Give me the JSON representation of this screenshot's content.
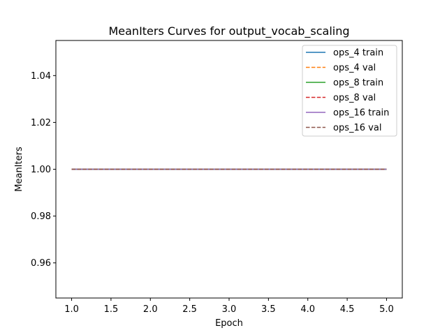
{
  "chart_data": {
    "type": "line",
    "title": "MeanIters Curves for output_vocab_scaling",
    "xlabel": "Epoch",
    "ylabel": "MeanIters",
    "xlim": [
      0.8,
      5.2
    ],
    "ylim": [
      0.945,
      1.055
    ],
    "x_ticks": [
      1.0,
      1.5,
      2.0,
      2.5,
      3.0,
      3.5,
      4.0,
      4.5,
      5.0
    ],
    "x_tick_labels": [
      "1.0",
      "1.5",
      "2.0",
      "2.5",
      "3.0",
      "3.5",
      "4.0",
      "4.5",
      "5.0"
    ],
    "y_ticks": [
      0.96,
      0.98,
      1.0,
      1.02,
      1.04
    ],
    "y_tick_labels": [
      "0.96",
      "0.98",
      "1.00",
      "1.02",
      "1.04"
    ],
    "grid": false,
    "legend_position": "top-right",
    "x": [
      1,
      2,
      3,
      4,
      5
    ],
    "series": [
      {
        "name": "ops_4 train",
        "values": [
          1,
          1,
          1,
          1,
          1
        ],
        "color": "#1f77b4",
        "dash": "solid"
      },
      {
        "name": "ops_4 val",
        "values": [
          1,
          1,
          1,
          1,
          1
        ],
        "color": "#ff7f0e",
        "dash": "dashed"
      },
      {
        "name": "ops_8 train",
        "values": [
          1,
          1,
          1,
          1,
          1
        ],
        "color": "#2ca02c",
        "dash": "solid"
      },
      {
        "name": "ops_8 val",
        "values": [
          1,
          1,
          1,
          1,
          1
        ],
        "color": "#d62728",
        "dash": "dashed"
      },
      {
        "name": "ops_16 train",
        "values": [
          1,
          1,
          1,
          1,
          1
        ],
        "color": "#9467bd",
        "dash": "solid"
      },
      {
        "name": "ops_16 val",
        "values": [
          1,
          1,
          1,
          1,
          1
        ],
        "color": "#8c564b",
        "dash": "dashed"
      }
    ]
  }
}
